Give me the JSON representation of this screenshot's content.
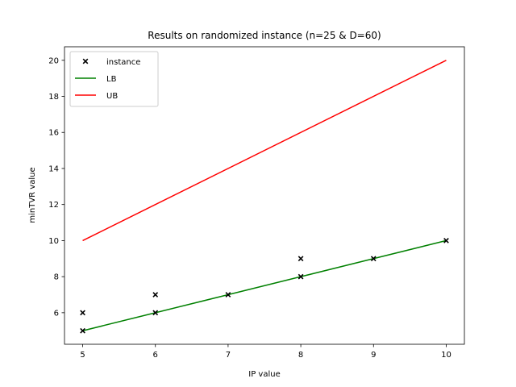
{
  "chart_data": {
    "type": "scatter",
    "title": "Results on randomized instance (n=25 & D=60)",
    "xlabel": "IP value",
    "ylabel": "minTVR value",
    "xlim": [
      4.75,
      10.25
    ],
    "ylim": [
      4.25,
      20.75
    ],
    "xticks": [
      5,
      6,
      7,
      8,
      9,
      10
    ],
    "yticks": [
      6,
      8,
      10,
      12,
      14,
      16,
      18,
      20
    ],
    "legend_position": "top-left",
    "grid": false,
    "series": [
      {
        "name": "instance",
        "kind": "scatter",
        "marker": "x",
        "color": "#000000",
        "points": [
          [
            5,
            6
          ],
          [
            5,
            5
          ],
          [
            6,
            7
          ],
          [
            6,
            6
          ],
          [
            7,
            7
          ],
          [
            8,
            9
          ],
          [
            8,
            8
          ],
          [
            9,
            9
          ],
          [
            10,
            10
          ]
        ]
      },
      {
        "name": "LB",
        "kind": "line",
        "color": "#008000",
        "points": [
          [
            5,
            5
          ],
          [
            6,
            6
          ],
          [
            7,
            7
          ],
          [
            8,
            8
          ],
          [
            9,
            9
          ],
          [
            10,
            10
          ]
        ]
      },
      {
        "name": "UB",
        "kind": "line",
        "color": "#ff0000",
        "points": [
          [
            5,
            10
          ],
          [
            10,
            20
          ]
        ]
      }
    ]
  }
}
